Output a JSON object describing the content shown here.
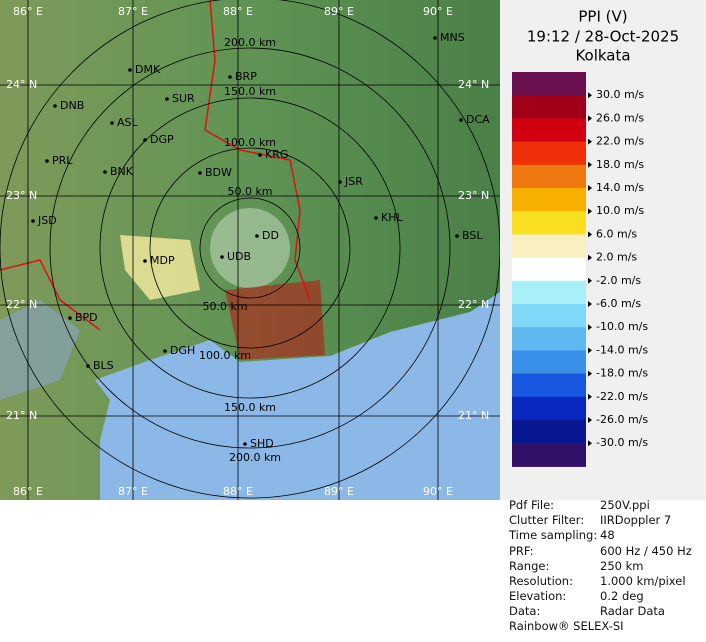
{
  "header": {
    "title": "PPI (V)",
    "time": "19:12 / 28-Oct-2025",
    "station": "Kolkata"
  },
  "legend": {
    "colors": [
      "#6a1050",
      "#a00018",
      "#d00010",
      "#f03008",
      "#f07810",
      "#f8b000",
      "#f8e020",
      "#f8f0c0",
      "#ffffff",
      "#a8f0f8",
      "#80d8f8",
      "#60b8f0",
      "#3890e8",
      "#1858e0",
      "#0828c0",
      "#081890",
      "#301068"
    ],
    "labels": [
      "30.0 m/s",
      "26.0 m/s",
      "22.0 m/s",
      "18.0 m/s",
      "14.0 m/s",
      "10.0 m/s",
      "6.0 m/s",
      "2.0 m/s",
      "-2.0 m/s",
      "-6.0 m/s",
      "-10.0 m/s",
      "-14.0 m/s",
      "-18.0 m/s",
      "-22.0 m/s",
      "-26.0 m/s",
      "-30.0 m/s"
    ]
  },
  "info": [
    [
      "Pdf File:",
      "250V.ppi"
    ],
    [
      "Clutter Filter:",
      "IIRDoppler 7"
    ],
    [
      "Time sampling:",
      "48"
    ],
    [
      "PRF:",
      "600 Hz / 450 Hz"
    ],
    [
      "Range:",
      "250 km"
    ],
    [
      "Resolution:",
      "1.000 km/pixel"
    ],
    [
      "Elevation:",
      "0.2 deg"
    ],
    [
      "Data:",
      "Radar Data"
    ]
  ],
  "footer": "Rainbow® SELEX-SI",
  "map": {
    "lon_labels": [
      "86° E",
      "87° E",
      "88° E",
      "89° E",
      "90° E"
    ],
    "lat_labels": [
      "24° N",
      "23° N",
      "22° N",
      "21° N"
    ],
    "range_labels": [
      "50.0 km",
      "100.0 km",
      "150.0 km",
      "200.0 km"
    ],
    "cities": [
      "MNS",
      "DMK",
      "BRP",
      "DNB",
      "SUR",
      "ASL",
      "DGP",
      "DCA",
      "KRG",
      "PRL",
      "BNK",
      "BDW",
      "JSR",
      "KHL",
      "JSD",
      "BSL",
      "DD",
      "MDP",
      "UDB",
      "BPD",
      "DGH",
      "BLS",
      "SHD"
    ]
  }
}
